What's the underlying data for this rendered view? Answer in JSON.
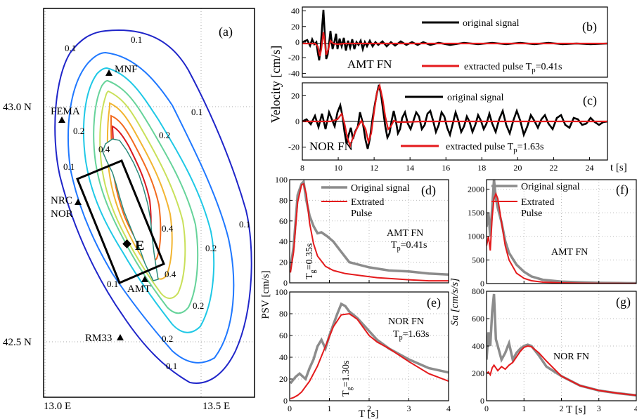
{
  "figure": {
    "colors": {
      "black": "#000000",
      "red": "#e41a1c",
      "gray": "#8c8c8c",
      "contour_palette": [
        "#1f25c9",
        "#1f78ff",
        "#1fc8e6",
        "#66d39a",
        "#c9e05a",
        "#f2b531",
        "#f26a1e",
        "#d9181f"
      ]
    }
  },
  "chart_data": [
    {
      "panel": "(a)",
      "type": "contour-map",
      "x_ticks": [
        "13.0 E",
        "13.5 E"
      ],
      "y_ticks": [
        "43.0 N",
        "42.5 N"
      ],
      "contour_labels": [
        "0.1",
        "0.1",
        "0.1",
        "0.1",
        "0.1",
        "0.1",
        "0.1",
        "0.2",
        "0.2",
        "0.2",
        "0.2",
        "0.2",
        "0.4",
        "0.4",
        "0.4"
      ],
      "stations": [
        "MNF",
        "FEMA",
        "NRC",
        "NOR",
        "AMT",
        "RM33"
      ],
      "epicenter_label": "E"
    },
    {
      "panel": "(b)",
      "type": "line",
      "ylim": [
        -45,
        45
      ],
      "yticks": [
        -40,
        -20,
        0,
        20,
        40
      ],
      "xlim": [
        8,
        25
      ],
      "annotation": "AMT FN",
      "series": [
        {
          "name": "original signal"
        },
        {
          "name": "extracted pulse T",
          "subscript": "p",
          "suffix": "=0.41s"
        }
      ]
    },
    {
      "panel": "(c)",
      "type": "line",
      "ylabel": "Velocity [cm/s]",
      "ylim": [
        -30,
        30
      ],
      "yticks": [
        -20,
        0,
        20
      ],
      "xlim": [
        8,
        25
      ],
      "xticks": [
        8,
        10,
        12,
        14,
        16,
        18,
        20,
        22,
        24
      ],
      "xlabel": "t [s]",
      "annotation": "NOR FN",
      "series": [
        {
          "name": "original signal"
        },
        {
          "name": "extracted pulse T",
          "subscript": "p",
          "suffix": "=1.63s"
        }
      ]
    },
    {
      "panel": "(d)",
      "type": "line",
      "xlim": [
        0,
        4
      ],
      "ylim": [
        0,
        100
      ],
      "yticks": [
        0,
        20,
        40,
        60,
        80,
        100
      ],
      "annotation": "AMT FN",
      "annotation2": {
        "main": "T",
        "sub": "p",
        "rest": "=0.41s"
      },
      "tg_label": {
        "main": "T",
        "sub": "g",
        "rest": "=0.35s"
      },
      "series": [
        {
          "name": "Original signal",
          "x": [
            0.02,
            0.1,
            0.2,
            0.3,
            0.35,
            0.42,
            0.5,
            0.6,
            0.7,
            0.8,
            0.95,
            1.1,
            1.3,
            1.5,
            2.0,
            2.5,
            3.0,
            3.5,
            4.0
          ],
          "y": [
            14,
            35,
            85,
            96,
            98,
            80,
            65,
            55,
            48,
            49,
            45,
            40,
            30,
            20,
            15,
            12,
            11,
            9,
            8
          ]
        },
        {
          "name": "Extrated Pulse",
          "x": [
            0.02,
            0.1,
            0.2,
            0.3,
            0.35,
            0.42,
            0.5,
            0.6,
            0.7,
            0.9,
            1.1,
            1.4,
            1.8,
            2.2,
            2.6,
            3.0,
            3.5,
            4.0
          ],
          "y": [
            10,
            30,
            78,
            95,
            96,
            86,
            58,
            38,
            26,
            16,
            12,
            9,
            7,
            5,
            4,
            3,
            2,
            2
          ]
        }
      ]
    },
    {
      "panel": "(e)",
      "type": "line",
      "xlim": [
        0,
        4
      ],
      "ylim": [
        0,
        100
      ],
      "yticks": [
        0,
        20,
        40,
        60,
        80,
        100
      ],
      "xticks": [
        0,
        1,
        2,
        3,
        4
      ],
      "xlabel": "T [s]",
      "ylabel": "PSV [cm/s]",
      "annotation": "NOR FN",
      "annotation2": {
        "main": "T",
        "sub": "p",
        "rest": "=1.63s"
      },
      "tg_label": {
        "main": "T",
        "sub": "g",
        "rest": "=1.30s"
      },
      "series": [
        {
          "name": "Original signal",
          "x": [
            0.02,
            0.15,
            0.25,
            0.4,
            0.5,
            0.6,
            0.7,
            0.8,
            0.9,
            1.0,
            1.1,
            1.2,
            1.3,
            1.4,
            1.5,
            1.7,
            1.9,
            2.2,
            2.5,
            3.0,
            3.5,
            4.0
          ],
          "y": [
            16,
            22,
            25,
            20,
            30,
            38,
            50,
            56,
            48,
            60,
            70,
            80,
            89,
            87,
            82,
            76,
            68,
            56,
            48,
            38,
            30,
            26
          ]
        },
        {
          "name": "Extrated Pulse",
          "x": [
            0.02,
            0.1,
            0.2,
            0.3,
            0.5,
            0.7,
            0.9,
            1.1,
            1.3,
            1.5,
            1.7,
            2.0,
            2.2,
            2.5,
            3.0,
            3.5,
            4.0
          ],
          "y": [
            2,
            3,
            5,
            8,
            18,
            32,
            50,
            68,
            79,
            80,
            75,
            60,
            54,
            48,
            36,
            25,
            18
          ]
        }
      ]
    },
    {
      "panel": "(f)",
      "type": "line",
      "xlim": [
        0,
        4
      ],
      "ylim": [
        0,
        2200
      ],
      "yticks": [
        0,
        500,
        1000,
        1500,
        2000
      ],
      "annotation": "AMT FN",
      "series": [
        {
          "name": "Original signal",
          "x": [
            0.0,
            0.05,
            0.1,
            0.15,
            0.2,
            0.25,
            0.3,
            0.4,
            0.5,
            0.6,
            0.8,
            1.0,
            1.2,
            1.5,
            2.0,
            2.5,
            3.0,
            3.5,
            4.0
          ],
          "y": [
            1200,
            1500,
            1000,
            1600,
            2200,
            1800,
            1600,
            1300,
            900,
            650,
            400,
            250,
            150,
            80,
            40,
            25,
            15,
            10,
            8
          ]
        },
        {
          "name": "Extrated Pulse",
          "x": [
            0.0,
            0.05,
            0.1,
            0.15,
            0.2,
            0.25,
            0.3,
            0.4,
            0.5,
            0.6,
            0.8,
            1.0,
            1.2,
            1.5,
            2.0,
            2.5,
            3.0,
            3.5,
            4.0
          ],
          "y": [
            800,
            1000,
            700,
            1400,
            1800,
            1900,
            1800,
            1300,
            800,
            500,
            220,
            110,
            60,
            30,
            15,
            8,
            5,
            3,
            2
          ]
        }
      ]
    },
    {
      "panel": "(g)",
      "type": "line",
      "xlim": [
        0,
        4
      ],
      "ylim": [
        0,
        800
      ],
      "yticks": [
        0,
        200,
        400,
        600,
        800
      ],
      "xticks": [
        0,
        1,
        2,
        3,
        4
      ],
      "xlabel": "T [s]",
      "ylabel": "Sa [cm/s/s]",
      "annotation": "NOR FN",
      "series": [
        {
          "name": "Original signal",
          "x": [
            0.0,
            0.05,
            0.1,
            0.15,
            0.2,
            0.25,
            0.3,
            0.4,
            0.5,
            0.6,
            0.7,
            0.8,
            0.9,
            1.0,
            1.1,
            1.2,
            1.4,
            1.6,
            2.0,
            2.5,
            3.0,
            3.5,
            4.0
          ],
          "y": [
            300,
            500,
            400,
            650,
            780,
            450,
            400,
            300,
            350,
            420,
            300,
            350,
            380,
            400,
            410,
            400,
            330,
            250,
            180,
            110,
            75,
            55,
            40
          ]
        },
        {
          "name": "Extrated Pulse",
          "x": [
            0.0,
            0.05,
            0.1,
            0.15,
            0.2,
            0.3,
            0.4,
            0.5,
            0.6,
            0.7,
            0.8,
            0.9,
            1.0,
            1.1,
            1.2,
            1.4,
            1.6,
            2.0,
            2.5,
            3.0,
            3.5,
            4.0
          ],
          "y": [
            200,
            210,
            190,
            240,
            260,
            220,
            250,
            230,
            260,
            280,
            320,
            360,
            390,
            400,
            395,
            350,
            290,
            180,
            110,
            75,
            55,
            40
          ]
        }
      ]
    }
  ]
}
